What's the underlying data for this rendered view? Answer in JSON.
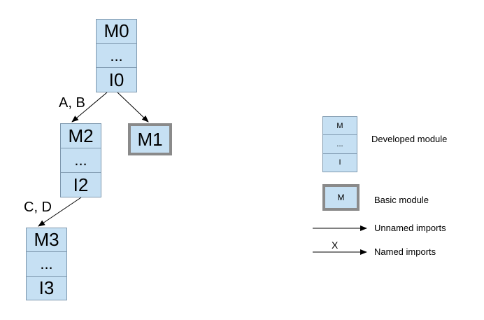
{
  "modules": {
    "m0": {
      "name": "M0",
      "dots": "...",
      "imports": "I0"
    },
    "m2": {
      "name": "M2",
      "dots": "...",
      "imports": "I2"
    },
    "m3": {
      "name": "M3",
      "dots": "...",
      "imports": "I3"
    },
    "m1": {
      "name": "M1"
    }
  },
  "edges": {
    "m0_m2_label": "A, B",
    "m2_m3_label": "C, D"
  },
  "legend": {
    "developed": {
      "top": "M",
      "mid": "...",
      "bottom": "I",
      "label": "Developed module"
    },
    "basic": {
      "symbol": "M",
      "label": "Basic module"
    },
    "unnamed": {
      "label": "Unnamed imports"
    },
    "named": {
      "symbol": "X",
      "label": "Named imports"
    }
  },
  "colors": {
    "module_fill": "#c6e0f3",
    "module_border": "#7e98ae",
    "basic_border": "#8a8a8a",
    "line": "#000000"
  }
}
